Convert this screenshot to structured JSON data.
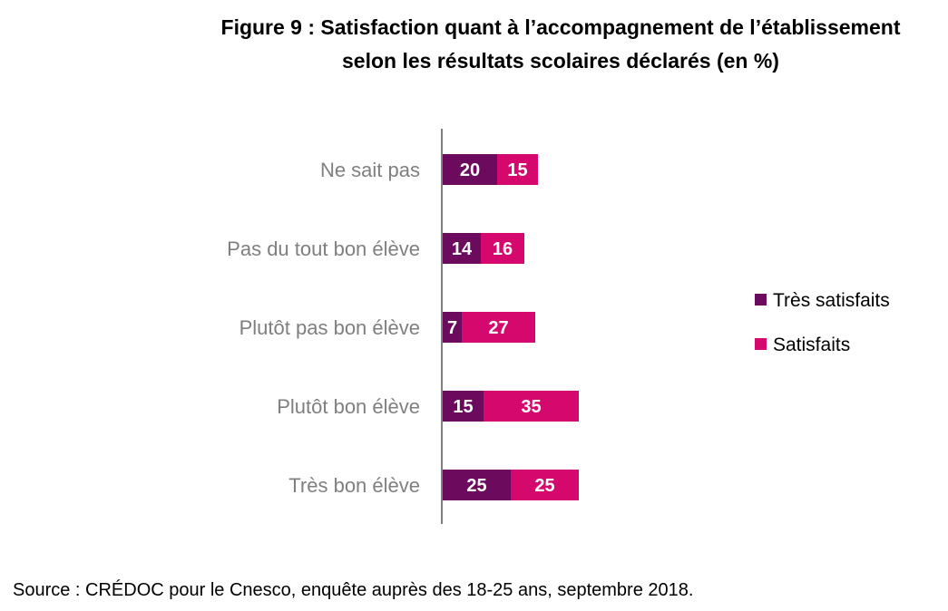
{
  "chart_data": {
    "type": "bar",
    "orientation": "horizontal",
    "stacked": true,
    "title_lines": [
      "Figure 9 : Satisfaction quant à l’accompagnement de l’établissement",
      "selon les résultats scolaires déclarés (en %)"
    ],
    "categories": [
      "Ne sait pas",
      "Pas du tout bon élève",
      "Plutôt pas bon élève",
      "Plutôt bon élève",
      "Très bon élève"
    ],
    "series": [
      {
        "name": "Très satisfaits",
        "color": "#6c0b5e",
        "values": [
          20,
          14,
          7,
          15,
          25
        ]
      },
      {
        "name": "Satisfaits",
        "color": "#d4086d",
        "values": [
          15,
          16,
          27,
          35,
          25
        ]
      }
    ],
    "xlim": [
      0,
      100
    ],
    "grid": false,
    "data_labels": true,
    "legend_position": "right"
  },
  "source": "Source : CRÉDOC pour le Cnesco, enquête auprès des 18-25 ans, septembre 2018."
}
